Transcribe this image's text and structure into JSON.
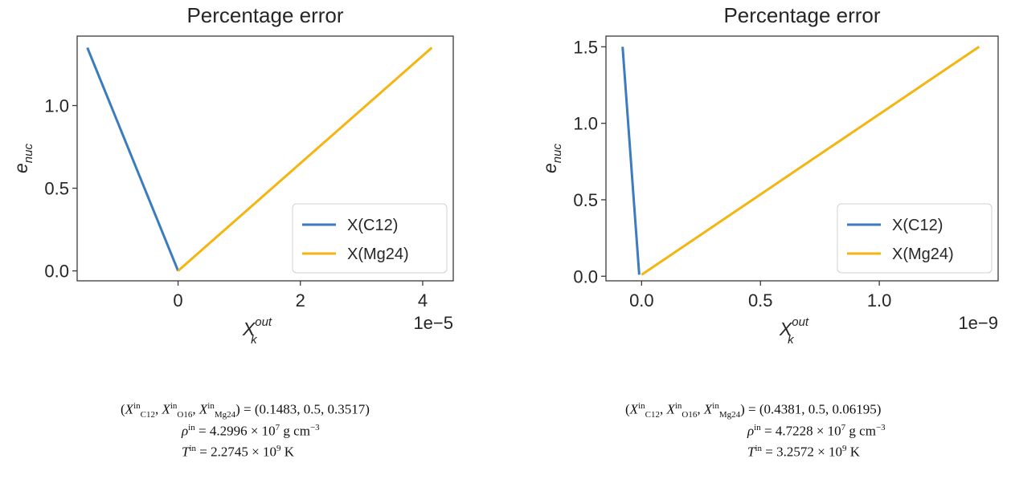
{
  "chart_data": [
    {
      "type": "line",
      "title": "Percentage error",
      "ylabel": {
        "base": "e",
        "sub": "nuc"
      },
      "xlabel": {
        "base": "X",
        "sub": "k",
        "sup": "out"
      },
      "x_offset_label": "1e−5",
      "x_scale": 1e-05,
      "xlim": [
        -1.65,
        4.5
      ],
      "ylim": [
        -0.06,
        1.42
      ],
      "xticks": [
        0,
        2,
        4
      ],
      "yticks": [
        0.0,
        0.5,
        1.0
      ],
      "ytick_labels": [
        "0.0",
        "0.5",
        "1.0"
      ],
      "legend_position": "lower-right",
      "series": [
        {
          "name": "X(C12)",
          "color": "#3b7bbf",
          "x": [
            -1.483,
            0.0
          ],
          "y": [
            1.35,
            0.0
          ]
        },
        {
          "name": "X(Mg24)",
          "color": "#f5b511",
          "x": [
            0.0,
            4.15
          ],
          "y": [
            0.0,
            1.35
          ]
        }
      ],
      "caption": {
        "line1": "(X_C12^in, X_O16^in, X_Mg24^in) = (0.1483, 0.5, 0.3517)",
        "composition": "(0.1483, 0.5, 0.3517)",
        "rho_value": "4.2996",
        "rho_exp": "7",
        "rho_unit": "g cm",
        "rho_unit_exp": "−3",
        "T_value": "2.2745",
        "T_exp": "9",
        "T_unit": "K"
      }
    },
    {
      "type": "line",
      "title": "Percentage error",
      "ylabel": {
        "base": "e",
        "sub": "nuc"
      },
      "xlabel": {
        "base": "X",
        "sub": "k",
        "sup": "out"
      },
      "x_offset_label": "1e−9",
      "x_scale": 1e-09,
      "xlim": [
        -0.15,
        1.5
      ],
      "ylim": [
        -0.03,
        1.57
      ],
      "xticks": [
        0.0,
        0.5,
        1.0
      ],
      "xtick_labels": [
        "0.0",
        "0.5",
        "1.0"
      ],
      "yticks": [
        0.0,
        0.5,
        1.0,
        1.5
      ],
      "ytick_labels": [
        "0.0",
        "0.5",
        "1.0",
        "1.5"
      ],
      "legend_position": "lower-right",
      "series": [
        {
          "name": "X(C12)",
          "color": "#3b7bbf",
          "x": [
            -0.08,
            -0.01
          ],
          "y": [
            1.5,
            0.01
          ]
        },
        {
          "name": "X(Mg24)",
          "color": "#f5b511",
          "x": [
            0.0,
            1.42
          ],
          "y": [
            0.01,
            1.5
          ]
        }
      ],
      "caption": {
        "composition": "(0.4381, 0.5, 0.06195)",
        "rho_value": "4.7228",
        "rho_exp": "7",
        "rho_unit": "g cm",
        "rho_unit_exp": "−3",
        "T_value": "3.2572",
        "T_exp": "9",
        "T_unit": "K"
      }
    }
  ]
}
